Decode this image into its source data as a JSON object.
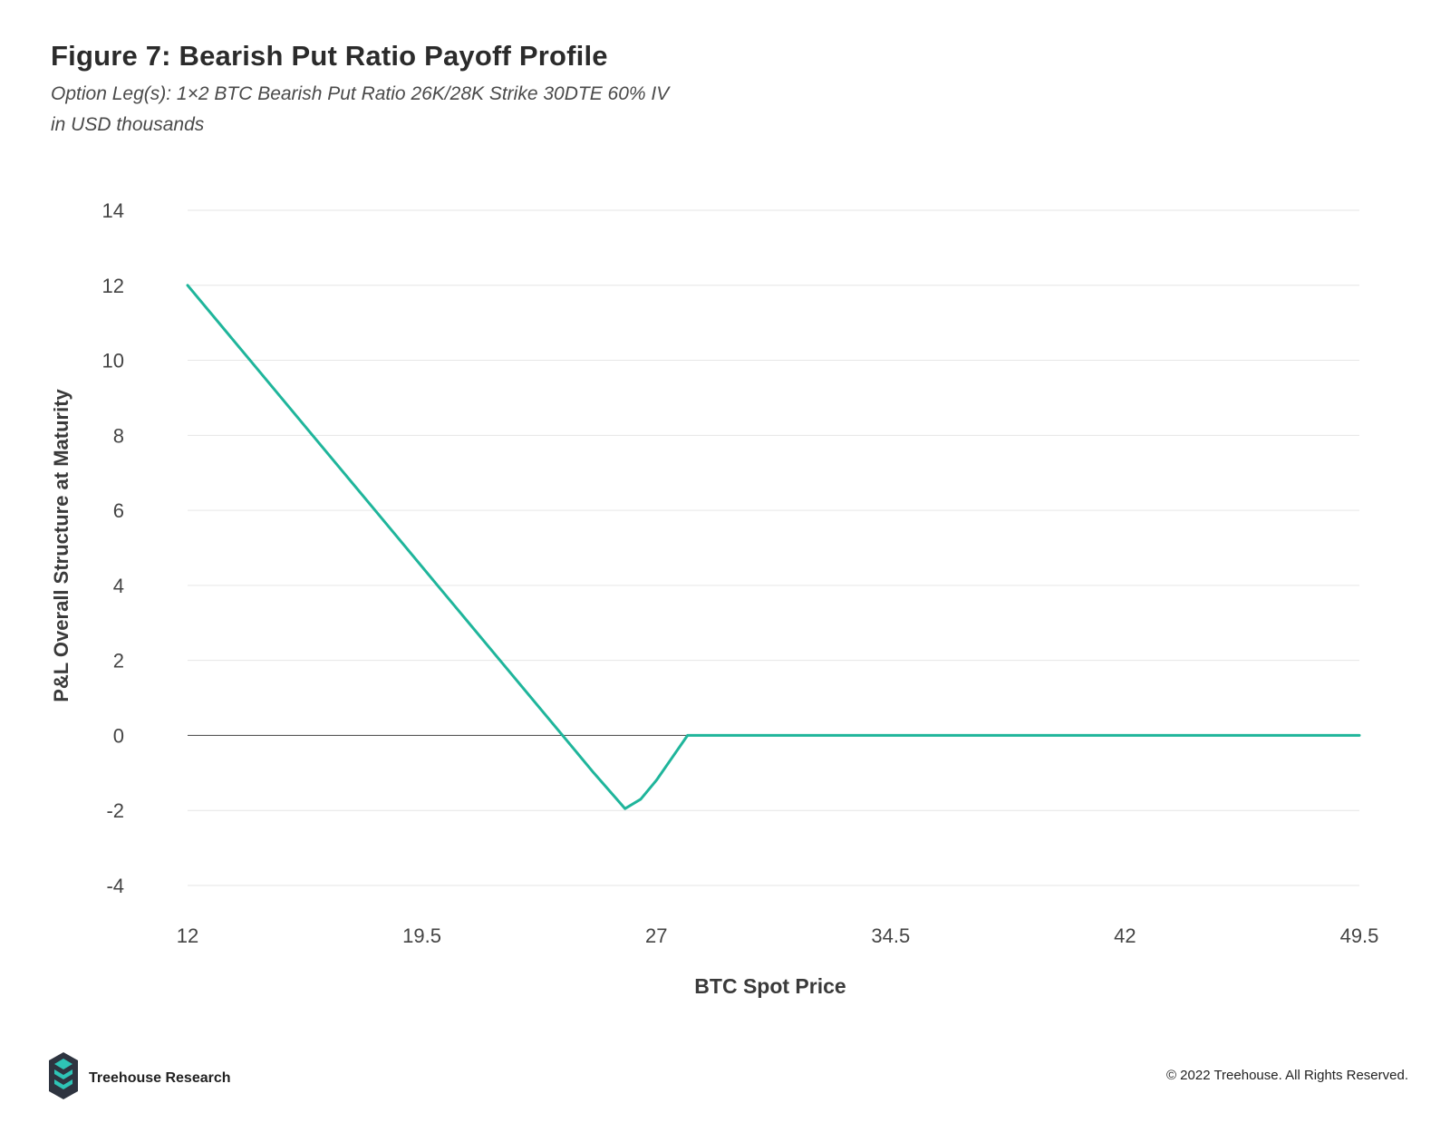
{
  "header": {
    "title": "Figure 7: Bearish Put Ratio Payoff Profile",
    "subtitle_line1": "Option Leg(s): 1×2 BTC Bearish Put Ratio 26K/28K Strike 30DTE 60% IV",
    "subtitle_line2": "in USD thousands"
  },
  "footer": {
    "brand": "Treehouse Research",
    "copyright": "© 2022 Treehouse. All Rights Reserved."
  },
  "colors": {
    "line": "#1fb59b",
    "grid": "#e6e6e6",
    "zero_line": "#555555",
    "logo_dark": "#2e3440",
    "logo_teal": "#2ec4b6"
  },
  "chart_data": {
    "type": "line",
    "xlabel": "BTC Spot Price",
    "ylabel": "P&L Overall Structure at Maturity",
    "xlim": [
      12,
      49.5
    ],
    "ylim": [
      -4,
      14
    ],
    "xticks": [
      12,
      19.5,
      27,
      34.5,
      42,
      49.5
    ],
    "xtick_labels": [
      "12",
      "19.5",
      "27",
      "34.5",
      "42",
      "49.5"
    ],
    "yticks": [
      -4,
      -2,
      0,
      2,
      4,
      6,
      8,
      10,
      12,
      14
    ],
    "ytick_labels": [
      "-4",
      "-2",
      "0",
      "2",
      "4",
      "6",
      "8",
      "10",
      "12",
      "14"
    ],
    "grid": true,
    "legend": "none",
    "series": [
      {
        "x": [
          12,
          14,
          16,
          18,
          20,
          22,
          24,
          25,
          26,
          26.5,
          27,
          27.5,
          28,
          30,
          35,
          40,
          45,
          49.5
        ],
        "values": [
          12,
          10,
          8,
          6,
          4,
          2,
          0,
          -1,
          -1.95,
          -1.7,
          -1.2,
          -0.6,
          0,
          0,
          0,
          0,
          0,
          0
        ]
      }
    ]
  }
}
